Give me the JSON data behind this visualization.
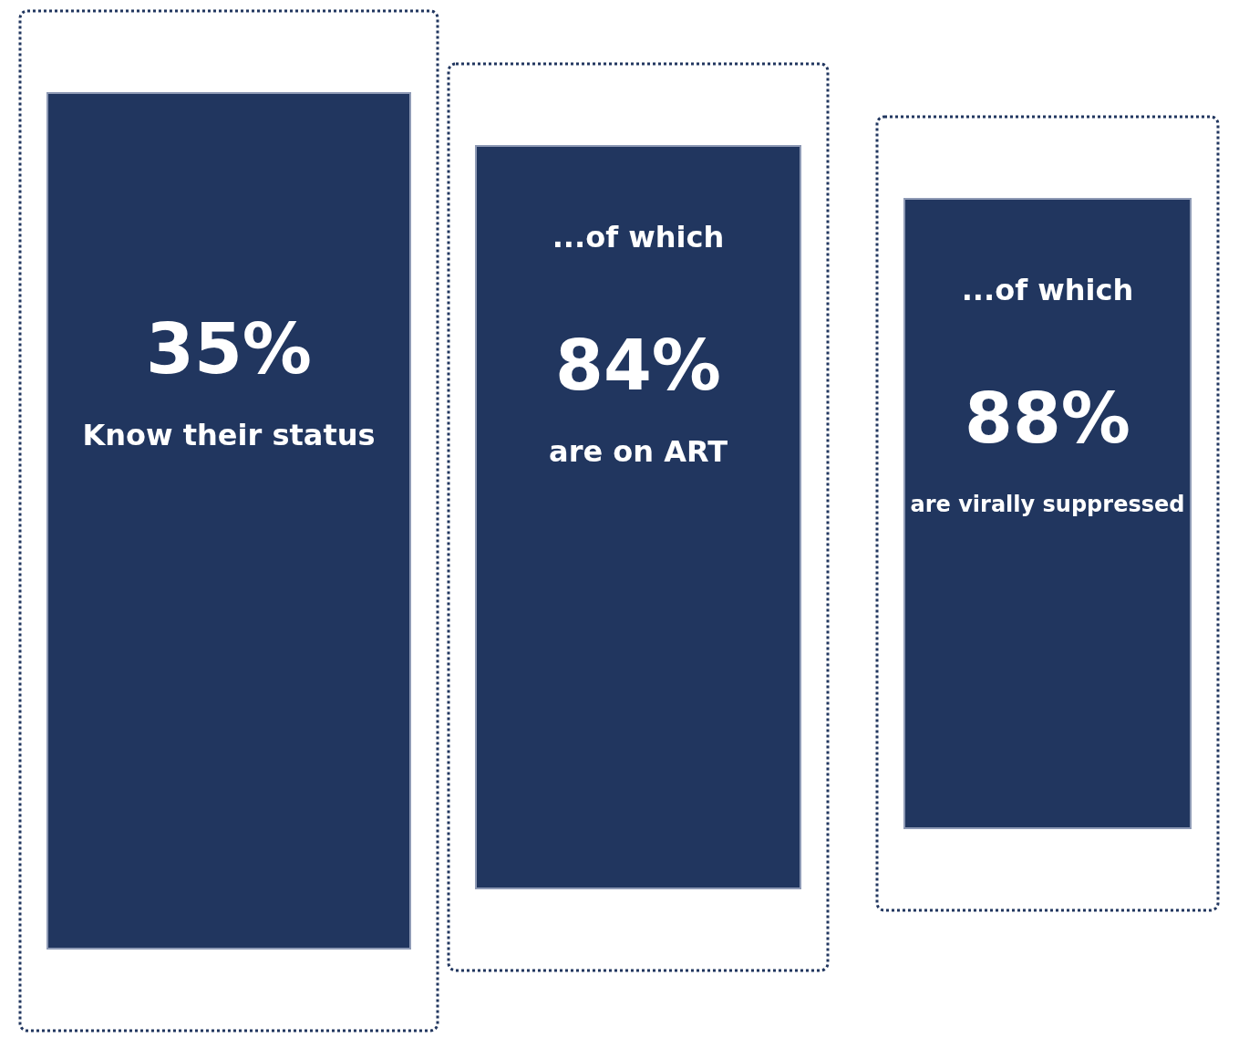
{
  "chart_data": {
    "type": "other",
    "categories": [
      "Know their status",
      "are on ART",
      "are virally suppressed"
    ],
    "values": [
      35,
      84,
      88
    ],
    "value_labels": [
      "35%",
      "84%",
      "88%"
    ],
    "color": "#21365f",
    "annotations": [
      {
        "text": "...of which",
        "x": "are on ART"
      },
      {
        "text": "...of which",
        "x": "are virally suppressed"
      }
    ]
  }
}
